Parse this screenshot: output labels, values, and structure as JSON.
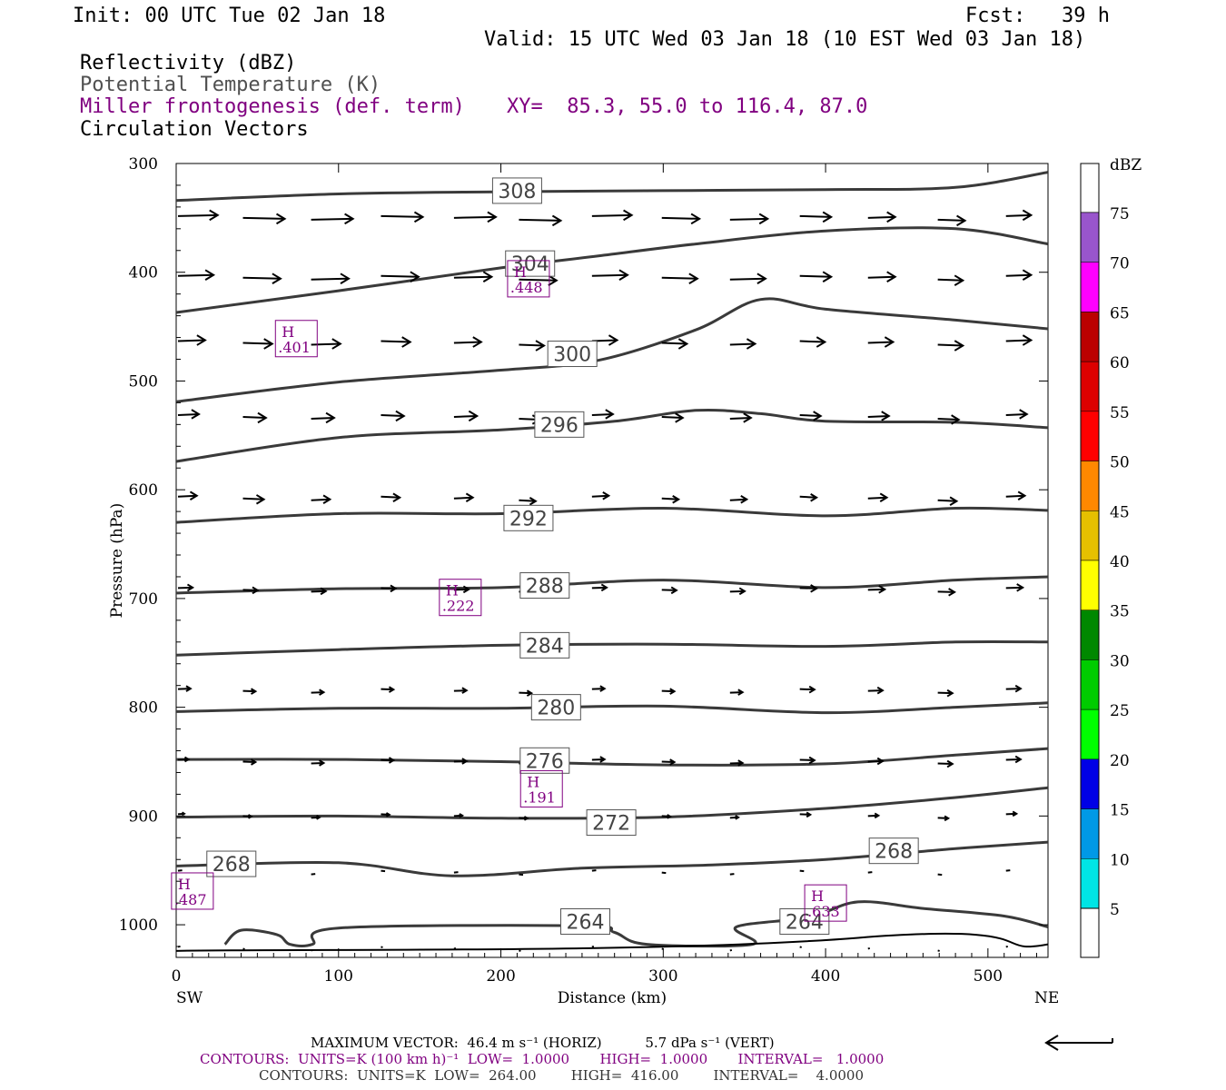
{
  "header": {
    "init": "Init: 00 UTC Tue 02 Jan 18",
    "fcst": "Fcst:   39 h",
    "valid": "Valid: 15 UTC Wed 03 Jan 18 (10 EST Wed 03 Jan 18)",
    "field1": "Reflectivity (dBZ)",
    "field2": "Potential Temperature (K)",
    "field3": "Miller frontogenesis (def. term)",
    "xy": "XY=  85.3, 55.0 to 116.4, 87.0",
    "field4": "Circulation Vectors"
  },
  "colors": {
    "theta": "#3a3a3a",
    "fronto": "#800080",
    "vector": "#000000",
    "field2_text": "#505050"
  },
  "colorbar": {
    "title": "dBZ",
    "labels": [
      "5",
      "10",
      "15",
      "20",
      "25",
      "30",
      "35",
      "40",
      "45",
      "50",
      "55",
      "60",
      "65",
      "70",
      "75"
    ],
    "colors": [
      "#ffffff",
      "#00e5e5",
      "#0099e6",
      "#0000e6",
      "#00ff00",
      "#00cc00",
      "#008800",
      "#ffff00",
      "#e6c000",
      "#ff8800",
      "#ff0000",
      "#dd0000",
      "#bb0000",
      "#ff00ff",
      "#9955cc",
      "#ffffff"
    ]
  },
  "footer": {
    "line1": "MAXIMUM VECTOR:  46.4 m s⁻¹ (HORIZ)          5.7 dPa s⁻¹ (VERT)",
    "line2": "CONTOURS:  UNITS=K (100 km h)⁻¹  LOW=  1.0000       HIGH=  1.0000       INTERVAL=   1.0000",
    "line3": "CONTOURS:  UNITS=K  LOW=  264.00        HIGH=  416.00        INTERVAL=    4.0000"
  },
  "chart_data": {
    "type": "line",
    "xlabel": "Distance (km)",
    "ylabel": "Pressure (hPa)",
    "xlim": [
      0,
      537
    ],
    "ylim": [
      1030,
      300
    ],
    "x_ticks": [
      "0",
      "100",
      "200",
      "300",
      "400",
      "500"
    ],
    "y_ticks": [
      "300",
      "400",
      "500",
      "600",
      "700",
      "800",
      "900",
      "1000"
    ],
    "x_end_labels": [
      "SW",
      "NE"
    ],
    "series": [
      {
        "label": "308",
        "points": [
          [
            0,
            334
          ],
          [
            100,
            328
          ],
          [
            200,
            326
          ],
          [
            300,
            325
          ],
          [
            400,
            324
          ],
          [
            480,
            322
          ],
          [
            537,
            308
          ]
        ]
      },
      {
        "label": "304",
        "points": [
          [
            0,
            437
          ],
          [
            100,
            417
          ],
          [
            200,
            396
          ],
          [
            260,
            385
          ],
          [
            320,
            374
          ],
          [
            400,
            362
          ],
          [
            480,
            360
          ],
          [
            537,
            374
          ]
        ]
      },
      {
        "label": "300",
        "points": [
          [
            0,
            519
          ],
          [
            100,
            501
          ],
          [
            200,
            490
          ],
          [
            260,
            481
          ],
          [
            320,
            453
          ],
          [
            360,
            425
          ],
          [
            400,
            434
          ],
          [
            480,
            444
          ],
          [
            537,
            452
          ]
        ]
      },
      {
        "label": "296",
        "points": [
          [
            0,
            574
          ],
          [
            100,
            552
          ],
          [
            200,
            545
          ],
          [
            270,
            537
          ],
          [
            320,
            527
          ],
          [
            360,
            530
          ],
          [
            400,
            537
          ],
          [
            480,
            538
          ],
          [
            537,
            543
          ]
        ]
      },
      {
        "label": "292",
        "points": [
          [
            0,
            630
          ],
          [
            100,
            622
          ],
          [
            200,
            622
          ],
          [
            300,
            617
          ],
          [
            400,
            624
          ],
          [
            480,
            617
          ],
          [
            537,
            619
          ]
        ]
      },
      {
        "label": "288",
        "points": [
          [
            0,
            695
          ],
          [
            100,
            691
          ],
          [
            200,
            690
          ],
          [
            300,
            683
          ],
          [
            400,
            690
          ],
          [
            480,
            683
          ],
          [
            537,
            680
          ]
        ]
      },
      {
        "label": "284",
        "points": [
          [
            0,
            752
          ],
          [
            100,
            747
          ],
          [
            200,
            743
          ],
          [
            300,
            742
          ],
          [
            400,
            744
          ],
          [
            480,
            740
          ],
          [
            537,
            740
          ]
        ]
      },
      {
        "label": "280",
        "points": [
          [
            0,
            804
          ],
          [
            100,
            801
          ],
          [
            200,
            801
          ],
          [
            300,
            799
          ],
          [
            400,
            805
          ],
          [
            480,
            800
          ],
          [
            537,
            796
          ]
        ]
      },
      {
        "label": "276",
        "points": [
          [
            0,
            848
          ],
          [
            100,
            848
          ],
          [
            200,
            850
          ],
          [
            300,
            853
          ],
          [
            400,
            852
          ],
          [
            480,
            844
          ],
          [
            537,
            838
          ]
        ]
      },
      {
        "label": "272",
        "points": [
          [
            0,
            901
          ],
          [
            100,
            900
          ],
          [
            200,
            902
          ],
          [
            300,
            901
          ],
          [
            400,
            893
          ],
          [
            480,
            883
          ],
          [
            537,
            874
          ]
        ]
      },
      {
        "label": "268",
        "points": [
          [
            0,
            946
          ],
          [
            100,
            943
          ],
          [
            170,
            955
          ],
          [
            250,
            948
          ],
          [
            330,
            945
          ],
          [
            400,
            940
          ],
          [
            480,
            930
          ],
          [
            537,
            924
          ]
        ]
      },
      {
        "label": "264",
        "points": [
          [
            30,
            1018
          ],
          [
            40,
            1005
          ],
          [
            62,
            1009
          ],
          [
            70,
            1018
          ],
          [
            84,
            1018
          ],
          [
            100,
            1003
          ],
          [
            250,
            1001
          ],
          [
            270,
            1007
          ],
          [
            290,
            1018
          ],
          [
            355,
            1018
          ],
          [
            345,
            1002
          ],
          [
            390,
            993
          ],
          [
            420,
            979
          ],
          [
            460,
            985
          ],
          [
            510,
            992
          ],
          [
            537,
            1002
          ]
        ]
      }
    ],
    "theta_labels": [
      {
        "text": "308",
        "x": 210,
        "p": 325
      },
      {
        "text": "304",
        "x": 218,
        "p": 392
      },
      {
        "text": "300",
        "x": 244,
        "p": 475
      },
      {
        "text": "296",
        "x": 236,
        "p": 540
      },
      {
        "text": "292",
        "x": 217,
        "p": 626
      },
      {
        "text": "288",
        "x": 227,
        "p": 688
      },
      {
        "text": "284",
        "x": 227,
        "p": 743
      },
      {
        "text": "280",
        "x": 234,
        "p": 800
      },
      {
        "text": "276",
        "x": 227,
        "p": 849
      },
      {
        "text": "272",
        "x": 268,
        "p": 906
      },
      {
        "text": "268",
        "x": 34,
        "p": 944
      },
      {
        "text": "268",
        "x": 442,
        "p": 932
      },
      {
        "text": "264",
        "x": 252,
        "p": 997
      },
      {
        "text": "264",
        "x": 387,
        "p": 997
      }
    ],
    "fronto_maxima": [
      {
        "label": "H",
        "value": ".448",
        "x": 217,
        "p": 406
      },
      {
        "label": "H",
        "value": ".401",
        "x": 74,
        "p": 461
      },
      {
        "label": "H",
        "value": ".222",
        "x": 175,
        "p": 699
      },
      {
        "label": "H",
        "value": ".191",
        "x": 225,
        "p": 875
      },
      {
        "label": "H",
        "value": ".487",
        "x": 10,
        "p": 969
      },
      {
        "label": "H",
        "value": ".633",
        "x": 400,
        "p": 980
      }
    ],
    "vector_levels": [
      {
        "p": 350,
        "u": [
          38,
          40,
          40,
          40,
          40,
          40,
          38,
          36,
          36,
          30,
          26,
          26,
          24
        ]
      },
      {
        "p": 405,
        "u": [
          34,
          36,
          36,
          36,
          36,
          36,
          34,
          34,
          34,
          30,
          26,
          24,
          24
        ]
      },
      {
        "p": 465,
        "u": [
          26,
          28,
          28,
          28,
          26,
          24,
          24,
          24,
          24,
          24,
          24,
          24,
          24
        ]
      },
      {
        "p": 533,
        "u": [
          20,
          22,
          22,
          22,
          22,
          20,
          20,
          20,
          20,
          20,
          20,
          20,
          20
        ]
      },
      {
        "p": 608,
        "u": [
          18,
          20,
          18,
          18,
          18,
          16,
          16,
          16,
          16,
          16,
          18,
          18,
          18
        ]
      },
      {
        "p": 692,
        "u": [
          14,
          14,
          14,
          14,
          14,
          14,
          14,
          14,
          14,
          16,
          16,
          16,
          16
        ]
      },
      {
        "p": 785,
        "u": [
          12,
          12,
          12,
          12,
          12,
          12,
          12,
          12,
          12,
          14,
          14,
          14,
          14
        ]
      },
      {
        "p": 850,
        "u": [
          10,
          12,
          12,
          12,
          12,
          12,
          12,
          12,
          12,
          14,
          14,
          14,
          14
        ]
      },
      {
        "p": 900,
        "u": [
          6,
          8,
          8,
          8,
          8,
          8,
          8,
          8,
          8,
          10,
          10,
          10,
          10
        ]
      },
      {
        "p": 952,
        "u": [
          4,
          4,
          4,
          4,
          4,
          4,
          4,
          4,
          4,
          4,
          4,
          4,
          4
        ]
      },
      {
        "p": 1022,
        "u": [
          1,
          1,
          1,
          1,
          1,
          1,
          1,
          1,
          1,
          1,
          1,
          1,
          1
        ]
      }
    ]
  }
}
